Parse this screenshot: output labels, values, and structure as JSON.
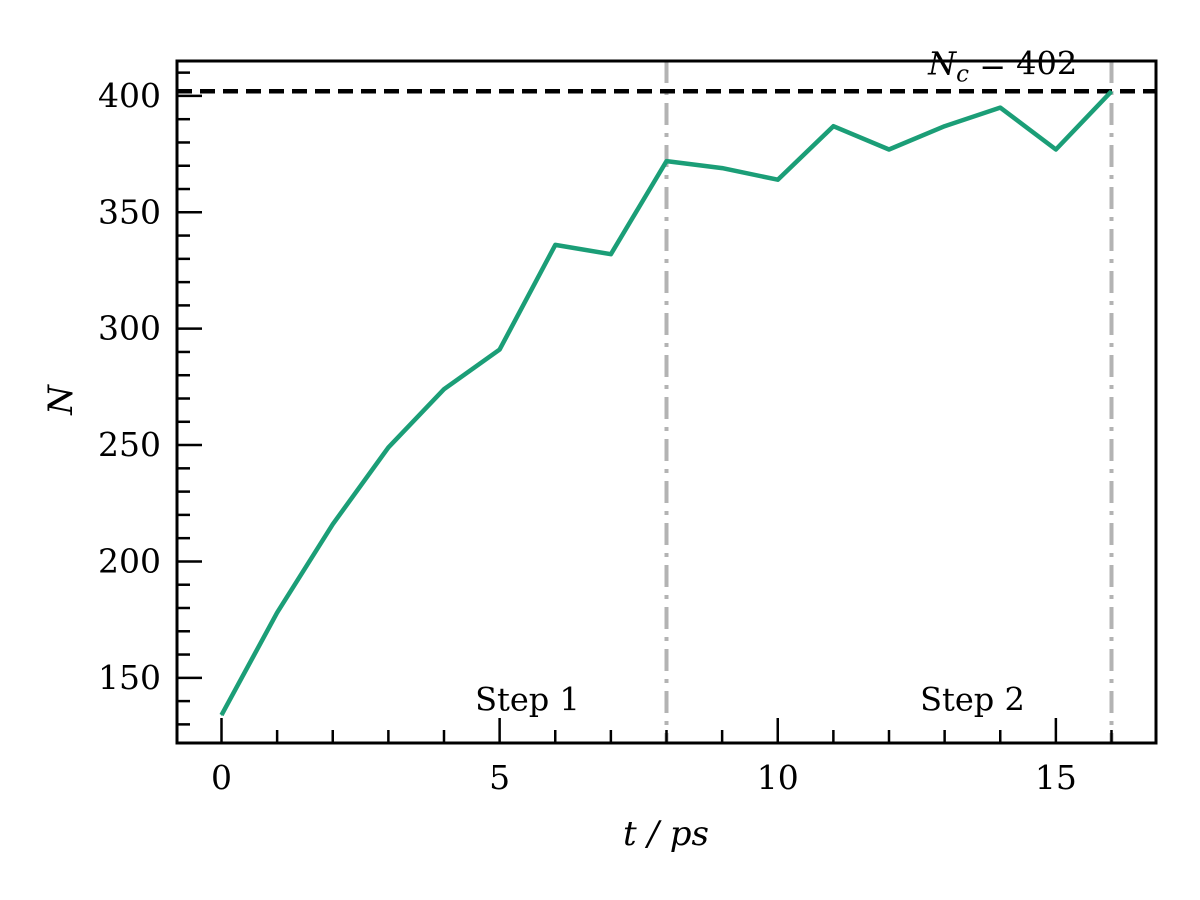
{
  "chart_data": {
    "type": "line",
    "xlabel": "t / ps",
    "ylabel": "N",
    "xlim": [
      -0.8,
      16.8
    ],
    "ylim": [
      122,
      415
    ],
    "x_ticks": [
      0,
      5,
      10,
      15
    ],
    "y_ticks": [
      150,
      200,
      250,
      300,
      350,
      400
    ],
    "grid": false,
    "series": [
      {
        "color": "#1b9e77",
        "x": [
          0,
          1,
          2,
          3,
          4,
          5,
          6,
          7,
          8,
          9,
          10,
          11,
          12,
          13,
          14,
          15,
          16
        ],
        "y": [
          134,
          178,
          216,
          249,
          274,
          291,
          336,
          332,
          372,
          369,
          364,
          387,
          377,
          387,
          395,
          377,
          402
        ]
      }
    ],
    "reference_line": {
      "y": 402,
      "label": "N_c = 402",
      "label_main": "N",
      "label_sub": "c",
      "label_rest": " = 402",
      "color": "#000000"
    },
    "step_lines": [
      {
        "x": 8,
        "color": "#b3b3b3"
      },
      {
        "x": 16,
        "color": "#b3b3b3"
      }
    ],
    "annotations": [
      {
        "text": "Step 1",
        "x": 5.5,
        "y": 136
      },
      {
        "text": "Step 2",
        "x": 13.5,
        "y": 136
      }
    ]
  }
}
